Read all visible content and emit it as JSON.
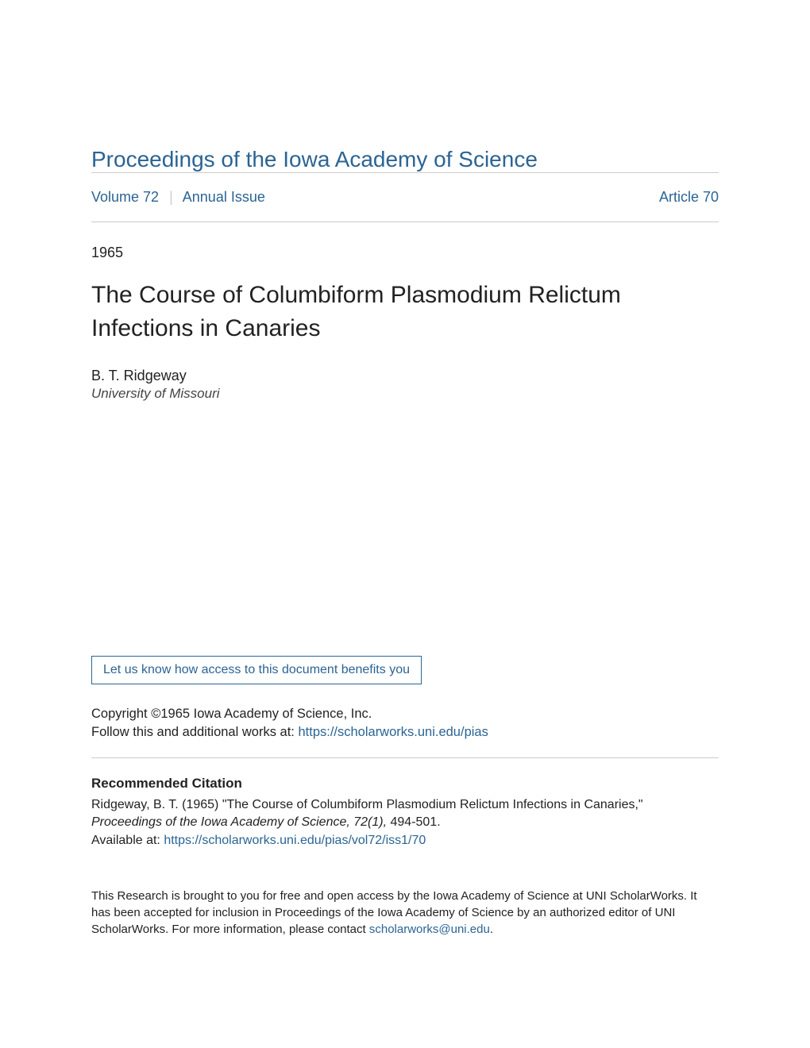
{
  "journal": {
    "title": "Proceedings of the Iowa Academy of Science"
  },
  "meta": {
    "volume_label": "Volume 72",
    "issue_label": "Annual Issue",
    "article_label": "Article 70"
  },
  "year": "1965",
  "article": {
    "title": "The Course of Columbiform Plasmodium Relictum Infections in Canaries",
    "author": "B. T. Ridgeway",
    "affiliation": "University of Missouri"
  },
  "benefits_link": "Let us know how access to this document benefits you",
  "copyright": "Copyright ©1965 Iowa Academy of Science, Inc.",
  "follow": {
    "prefix": "Follow this and additional works at: ",
    "url": "https://scholarworks.uni.edu/pias"
  },
  "citation": {
    "heading": "Recommended Citation",
    "line1": "Ridgeway, B. T. (1965) \"The Course of Columbiform Plasmodium Relictum Infections in Canaries,\"",
    "line2_italic": "Proceedings of the Iowa Academy of Science, 72(1),",
    "line2_rest": " 494-501.",
    "available_prefix": "Available at: ",
    "available_url": "https://scholarworks.uni.edu/pias/vol72/iss1/70"
  },
  "footer": {
    "text_before": "This Research is brought to you for free and open access by the Iowa Academy of Science at UNI ScholarWorks. It has been accepted for inclusion in Proceedings of the Iowa Academy of Science by an authorized editor of UNI ScholarWorks. For more information, please contact ",
    "email": "scholarworks@uni.edu",
    "text_after": "."
  },
  "colors": {
    "link": "#2b6494",
    "text": "#222222",
    "divider": "#cccccc",
    "background": "#ffffff"
  },
  "typography": {
    "journal_title_fontsize": 28,
    "article_title_fontsize": 30,
    "body_fontsize": 16.5,
    "footer_fontsize": 15
  }
}
